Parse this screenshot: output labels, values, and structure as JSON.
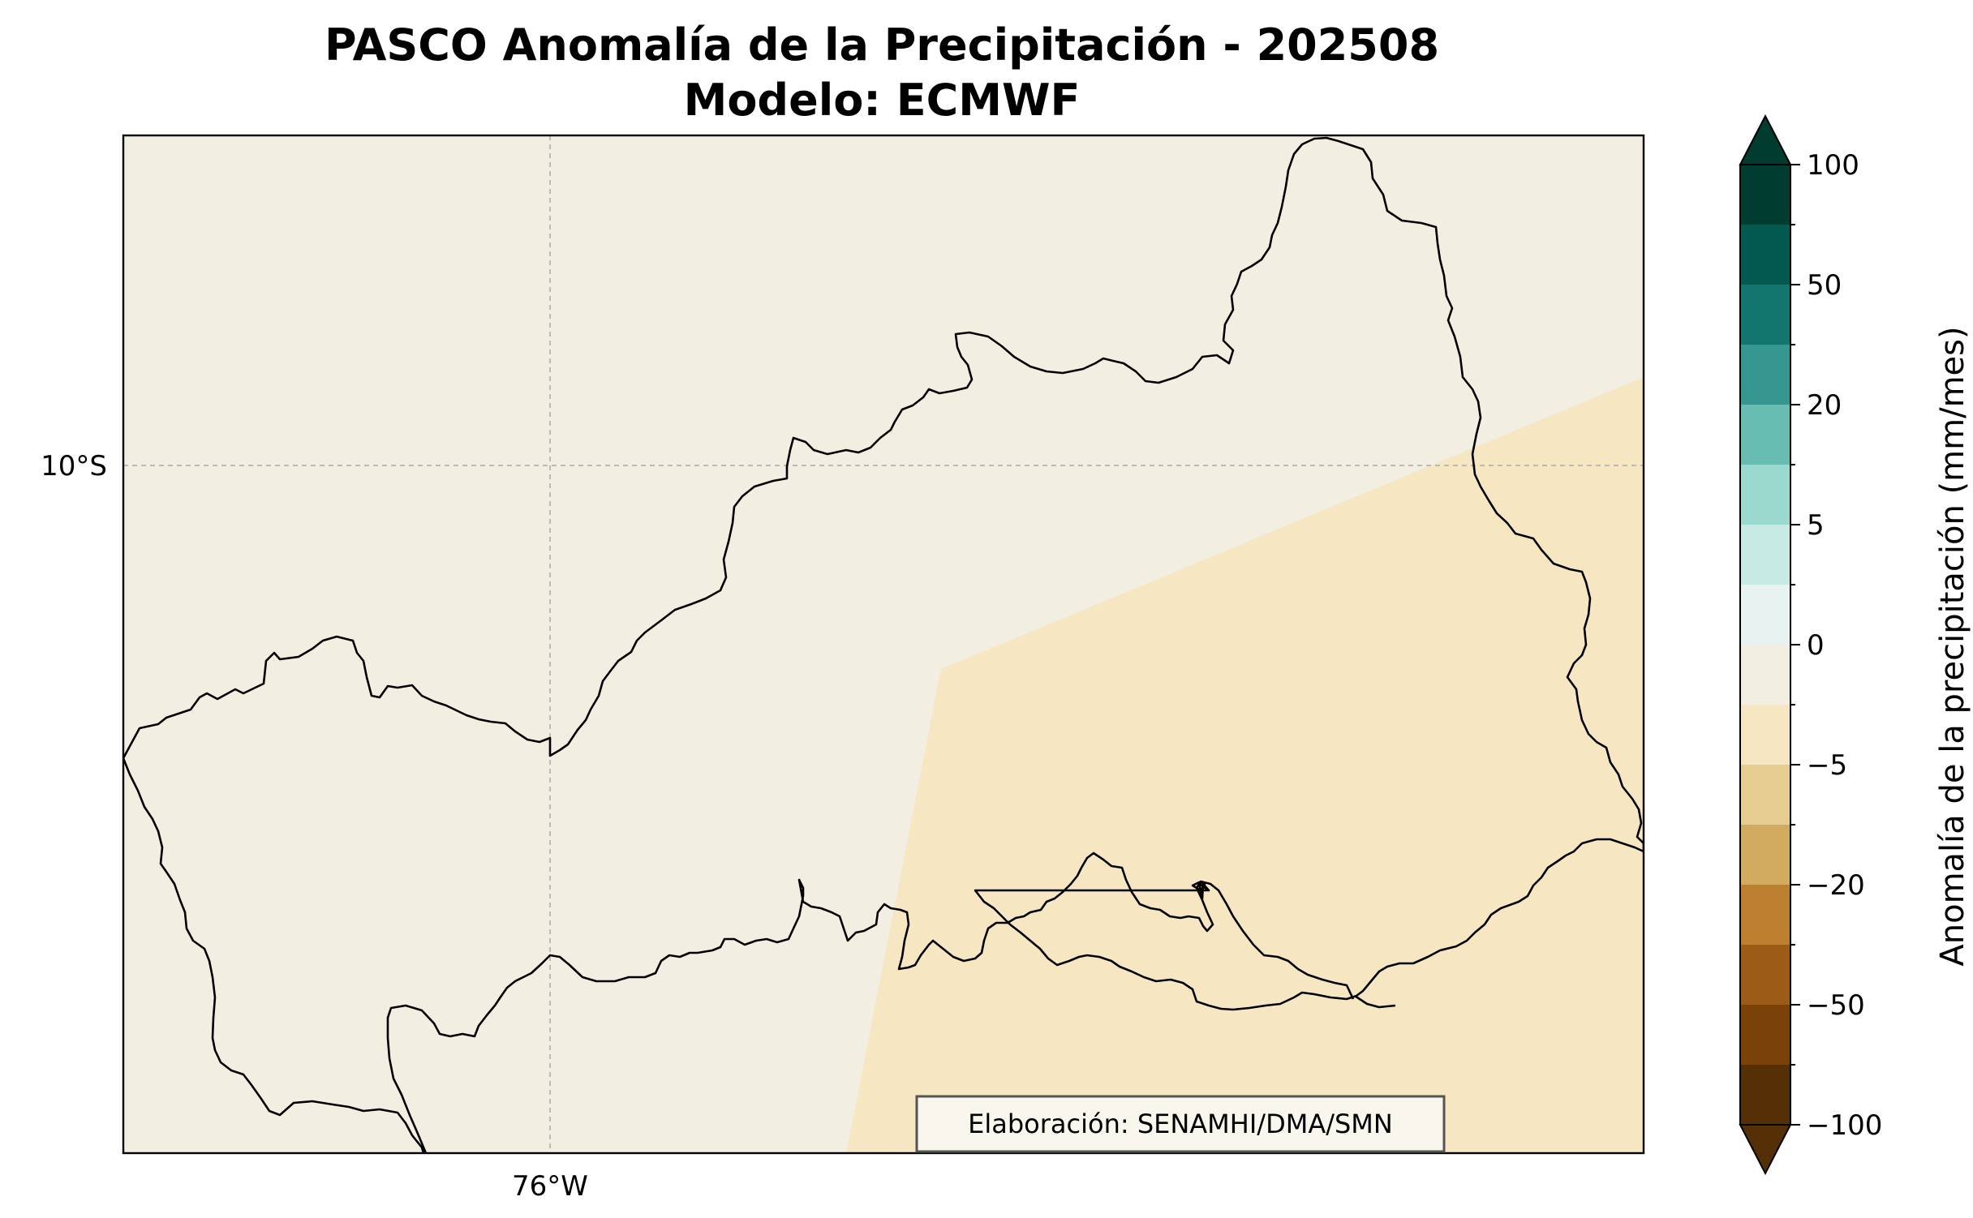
{
  "title_line1": "PASCO Anomalía de la Precipitación - 202508",
  "title_line2": "Modelo: ECMWF",
  "lon_tick": "76°W",
  "lat_tick": "10°S",
  "credit": "Elaboración: SENAMHI/DMA/SMN",
  "colorbar": {
    "label": "Anomalía de la precipitación (mm/mes)",
    "tick_labels": [
      "100",
      "50",
      "20",
      "5",
      "0",
      "−5",
      "−20",
      "−50",
      "−100"
    ],
    "colors_top_to_bottom": [
      "#013c30",
      "#01594f",
      "#12766f",
      "#35978f",
      "#68bdb2",
      "#9bd8cd",
      "#c8eae5",
      "#e8f2f1",
      "#f3eee2",
      "#f6e6c2",
      "#e6ce93",
      "#d2ab60",
      "#bd7f30",
      "#9c5b17",
      "#7a4209",
      "#553006"
    ],
    "extend": "both"
  },
  "map": {
    "base_fill": "#f3eee2",
    "dry_anomaly_fill": "#f6e6c2",
    "region_outline_color": "#000000",
    "gridline_color": "#aaaaaa"
  }
}
